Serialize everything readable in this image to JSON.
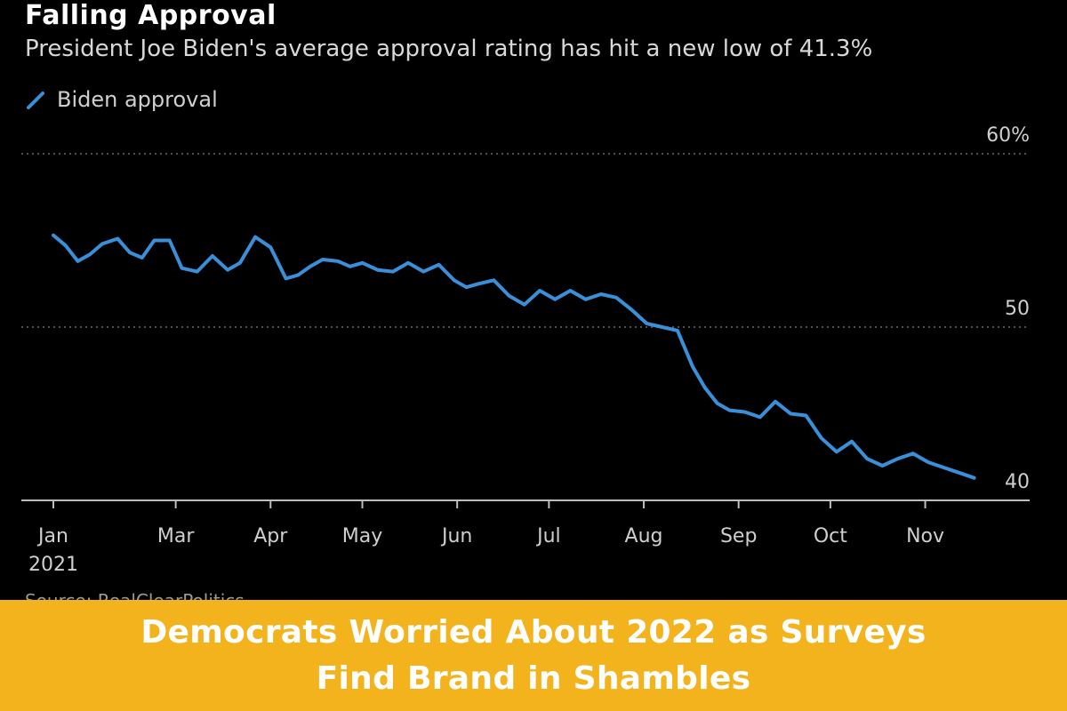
{
  "header": {
    "title": "Falling Approval",
    "subtitle": "President Joe Biden's average approval rating has hit a new low of 41.3%"
  },
  "source_text": "Source: RealClearPolitics",
  "banner": {
    "line1": "Democrats Worried About 2022 as Surveys",
    "line2": "Find Brand in Shambles",
    "background": "#f2b31c",
    "text_color": "#ffffff"
  },
  "colors": {
    "line": "#3a8fd9",
    "background": "#000000",
    "grid": "#6a6a6a",
    "axis": "#bdbdbd"
  },
  "chart_data": {
    "type": "line",
    "title": "Falling Approval",
    "subtitle": "President Joe Biden's average approval rating has hit a new low of 41.3%",
    "legend": "top-left",
    "series": [
      {
        "name": "Biden approval",
        "color": "#3a8fd9",
        "x": [
          "2021-01-20",
          "2021-01-24",
          "2021-01-28",
          "2021-02-01",
          "2021-02-05",
          "2021-02-10",
          "2021-02-14",
          "2021-02-18",
          "2021-02-22",
          "2021-02-27",
          "2021-03-03",
          "2021-03-08",
          "2021-03-13",
          "2021-03-18",
          "2021-03-22",
          "2021-03-27",
          "2021-04-01",
          "2021-04-06",
          "2021-04-10",
          "2021-04-14",
          "2021-04-18",
          "2021-04-23",
          "2021-04-27",
          "2021-05-01",
          "2021-05-06",
          "2021-05-11",
          "2021-05-16",
          "2021-05-21",
          "2021-05-26",
          "2021-05-31",
          "2021-06-04",
          "2021-06-08",
          "2021-06-13",
          "2021-06-18",
          "2021-06-23",
          "2021-06-28",
          "2021-07-03",
          "2021-07-08",
          "2021-07-13",
          "2021-07-18",
          "2021-07-23",
          "2021-07-28",
          "2021-08-02",
          "2021-08-07",
          "2021-08-12",
          "2021-08-17",
          "2021-08-21",
          "2021-08-25",
          "2021-08-29",
          "2021-09-03",
          "2021-09-08",
          "2021-09-13",
          "2021-09-18",
          "2021-09-23",
          "2021-09-28",
          "2021-10-03",
          "2021-10-08",
          "2021-10-13",
          "2021-10-18",
          "2021-10-23",
          "2021-10-28",
          "2021-11-02",
          "2021-11-07",
          "2021-11-12",
          "2021-11-17"
        ],
        "values": [
          55.3,
          54.7,
          53.8,
          54.2,
          54.8,
          55.1,
          54.3,
          54.0,
          55.0,
          55.0,
          53.4,
          53.2,
          54.1,
          53.3,
          53.7,
          55.2,
          54.6,
          52.8,
          53.0,
          53.5,
          53.9,
          53.8,
          53.5,
          53.7,
          53.3,
          53.2,
          53.7,
          53.2,
          53.6,
          52.7,
          52.3,
          52.5,
          52.7,
          51.8,
          51.3,
          52.1,
          51.6,
          52.1,
          51.6,
          51.9,
          51.7,
          51.0,
          50.2,
          50.0,
          49.8,
          47.7,
          46.5,
          45.6,
          45.2,
          45.1,
          44.8,
          45.7,
          45.0,
          44.9,
          43.6,
          42.8,
          43.4,
          42.4,
          42.0,
          42.4,
          42.7,
          42.2,
          41.9,
          41.6,
          41.3
        ]
      }
    ],
    "x_ticks": [
      {
        "date": "2021-01-20",
        "label": "Jan",
        "sublabel": "2021"
      },
      {
        "date": "2021-03-01",
        "label": "Mar"
      },
      {
        "date": "2021-04-01",
        "label": "Apr"
      },
      {
        "date": "2021-05-01",
        "label": "May"
      },
      {
        "date": "2021-06-01",
        "label": "Jun"
      },
      {
        "date": "2021-07-01",
        "label": "Jul"
      },
      {
        "date": "2021-08-01",
        "label": "Aug"
      },
      {
        "date": "2021-09-01",
        "label": "Sep"
      },
      {
        "date": "2021-10-01",
        "label": "Oct"
      },
      {
        "date": "2021-11-01",
        "label": "Nov"
      }
    ],
    "y_ticks": [
      {
        "value": 60,
        "label": "60%"
      },
      {
        "value": 50,
        "label": "50"
      },
      {
        "value": 40,
        "label": "40"
      }
    ],
    "xlim": [
      "2021-01-20",
      "2021-11-27"
    ],
    "ylim": [
      40,
      60
    ],
    "y_axis_side": "right",
    "grid": "horizontal dotted"
  }
}
